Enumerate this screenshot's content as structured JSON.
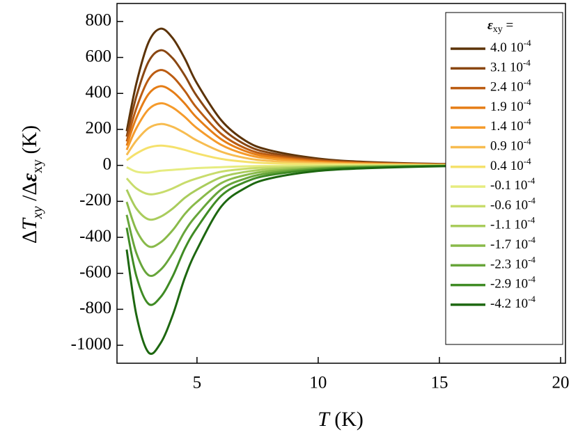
{
  "chart_data": {
    "type": "line",
    "x_label_parts": [
      "T",
      " (K)"
    ],
    "y_label_parts": [
      "Δ",
      "T",
      "xy",
      " /Δ",
      "ε",
      "xy",
      " (K)"
    ],
    "legend_title_parts": [
      "ε",
      "xy",
      " ="
    ],
    "legend_unit_parts": [
      "10",
      "-4"
    ],
    "x": [
      2.1,
      2.5,
      3.0,
      3.5,
      4.0,
      4.5,
      5,
      6,
      7,
      8,
      10,
      12,
      15,
      20
    ],
    "xlim": [
      1.7,
      20.2
    ],
    "xticks": [
      5,
      10,
      15,
      20
    ],
    "ylim": [
      -1100,
      900
    ],
    "yticks": [
      -1000,
      -800,
      -600,
      -400,
      -200,
      0,
      200,
      400,
      600,
      800
    ],
    "series": [
      {
        "name": "4.0",
        "color": "#5c3308",
        "values": [
          190,
          456,
          684,
          760,
          707,
          593,
          456,
          251,
          137,
          84,
          38,
          19,
          8,
          0
        ]
      },
      {
        "name": "3.1",
        "color": "#8a4712",
        "values": [
          160,
          384,
          576,
          640,
          595,
          499,
          384,
          211,
          115,
          70,
          32,
          16,
          6,
          0
        ]
      },
      {
        "name": "2.4",
        "color": "#bb5c12",
        "values": [
          133,
          318,
          477,
          530,
          493,
          413,
          318,
          175,
          95,
          58,
          27,
          13,
          5,
          0
        ]
      },
      {
        "name": "1.9",
        "color": "#e57d16",
        "values": [
          110,
          264,
          396,
          440,
          409,
          343,
          264,
          145,
          79,
          48,
          22,
          11,
          4,
          0
        ]
      },
      {
        "name": "1.4",
        "color": "#f59b2c",
        "values": [
          86,
          207,
          311,
          345,
          321,
          269,
          207,
          114,
          62,
          38,
          17,
          9,
          3,
          0
        ]
      },
      {
        "name": "0.9",
        "color": "#f7bc50",
        "values": [
          58,
          138,
          207,
          230,
          214,
          179,
          138,
          76,
          41,
          25,
          12,
          6,
          2,
          0
        ]
      },
      {
        "name": "0.4",
        "color": "#f5e16c",
        "values": [
          28,
          66,
          99,
          110,
          102,
          86,
          66,
          36,
          20,
          12,
          6,
          3,
          1,
          0
        ]
      },
      {
        "name": "-0.1",
        "color": "#e6ec80",
        "values": [
          -10,
          -35,
          -40,
          -30,
          -25,
          -20,
          -15,
          -10,
          -5,
          -3,
          -1,
          0,
          0,
          0
        ]
      },
      {
        "name": "-0.6",
        "color": "#c8dc6c",
        "values": [
          -72,
          -128,
          -160,
          -152,
          -128,
          -96,
          -72,
          -35,
          -19,
          -11,
          -5,
          -2,
          -1,
          0
        ]
      },
      {
        "name": "-1.1",
        "color": "#a9cc5c",
        "values": [
          -135,
          -240,
          -300,
          -285,
          -240,
          -180,
          -135,
          -66,
          -36,
          -21,
          -9,
          -5,
          -2,
          0
        ]
      },
      {
        "name": "-1.7",
        "color": "#89ba4a",
        "values": [
          -203,
          -360,
          -450,
          -428,
          -360,
          -270,
          -203,
          -99,
          -54,
          -32,
          -14,
          -7,
          -2,
          0
        ]
      },
      {
        "name": "-2.3",
        "color": "#67a53a",
        "values": [
          -275,
          -488,
          -610,
          -580,
          -488,
          -366,
          -275,
          -134,
          -73,
          -43,
          -18,
          -9,
          -3,
          0
        ]
      },
      {
        "name": "-2.9",
        "color": "#3f8b24",
        "values": [
          -347,
          -616,
          -770,
          -732,
          -616,
          -462,
          -347,
          -169,
          -92,
          -54,
          -23,
          -12,
          -4,
          0
        ]
      },
      {
        "name": "-4.2",
        "color": "#1d6710",
        "values": [
          -468,
          -832,
          -1040,
          -988,
          -832,
          -624,
          -468,
          -229,
          -125,
          -73,
          -31,
          -16,
          -5,
          0
        ]
      }
    ]
  }
}
